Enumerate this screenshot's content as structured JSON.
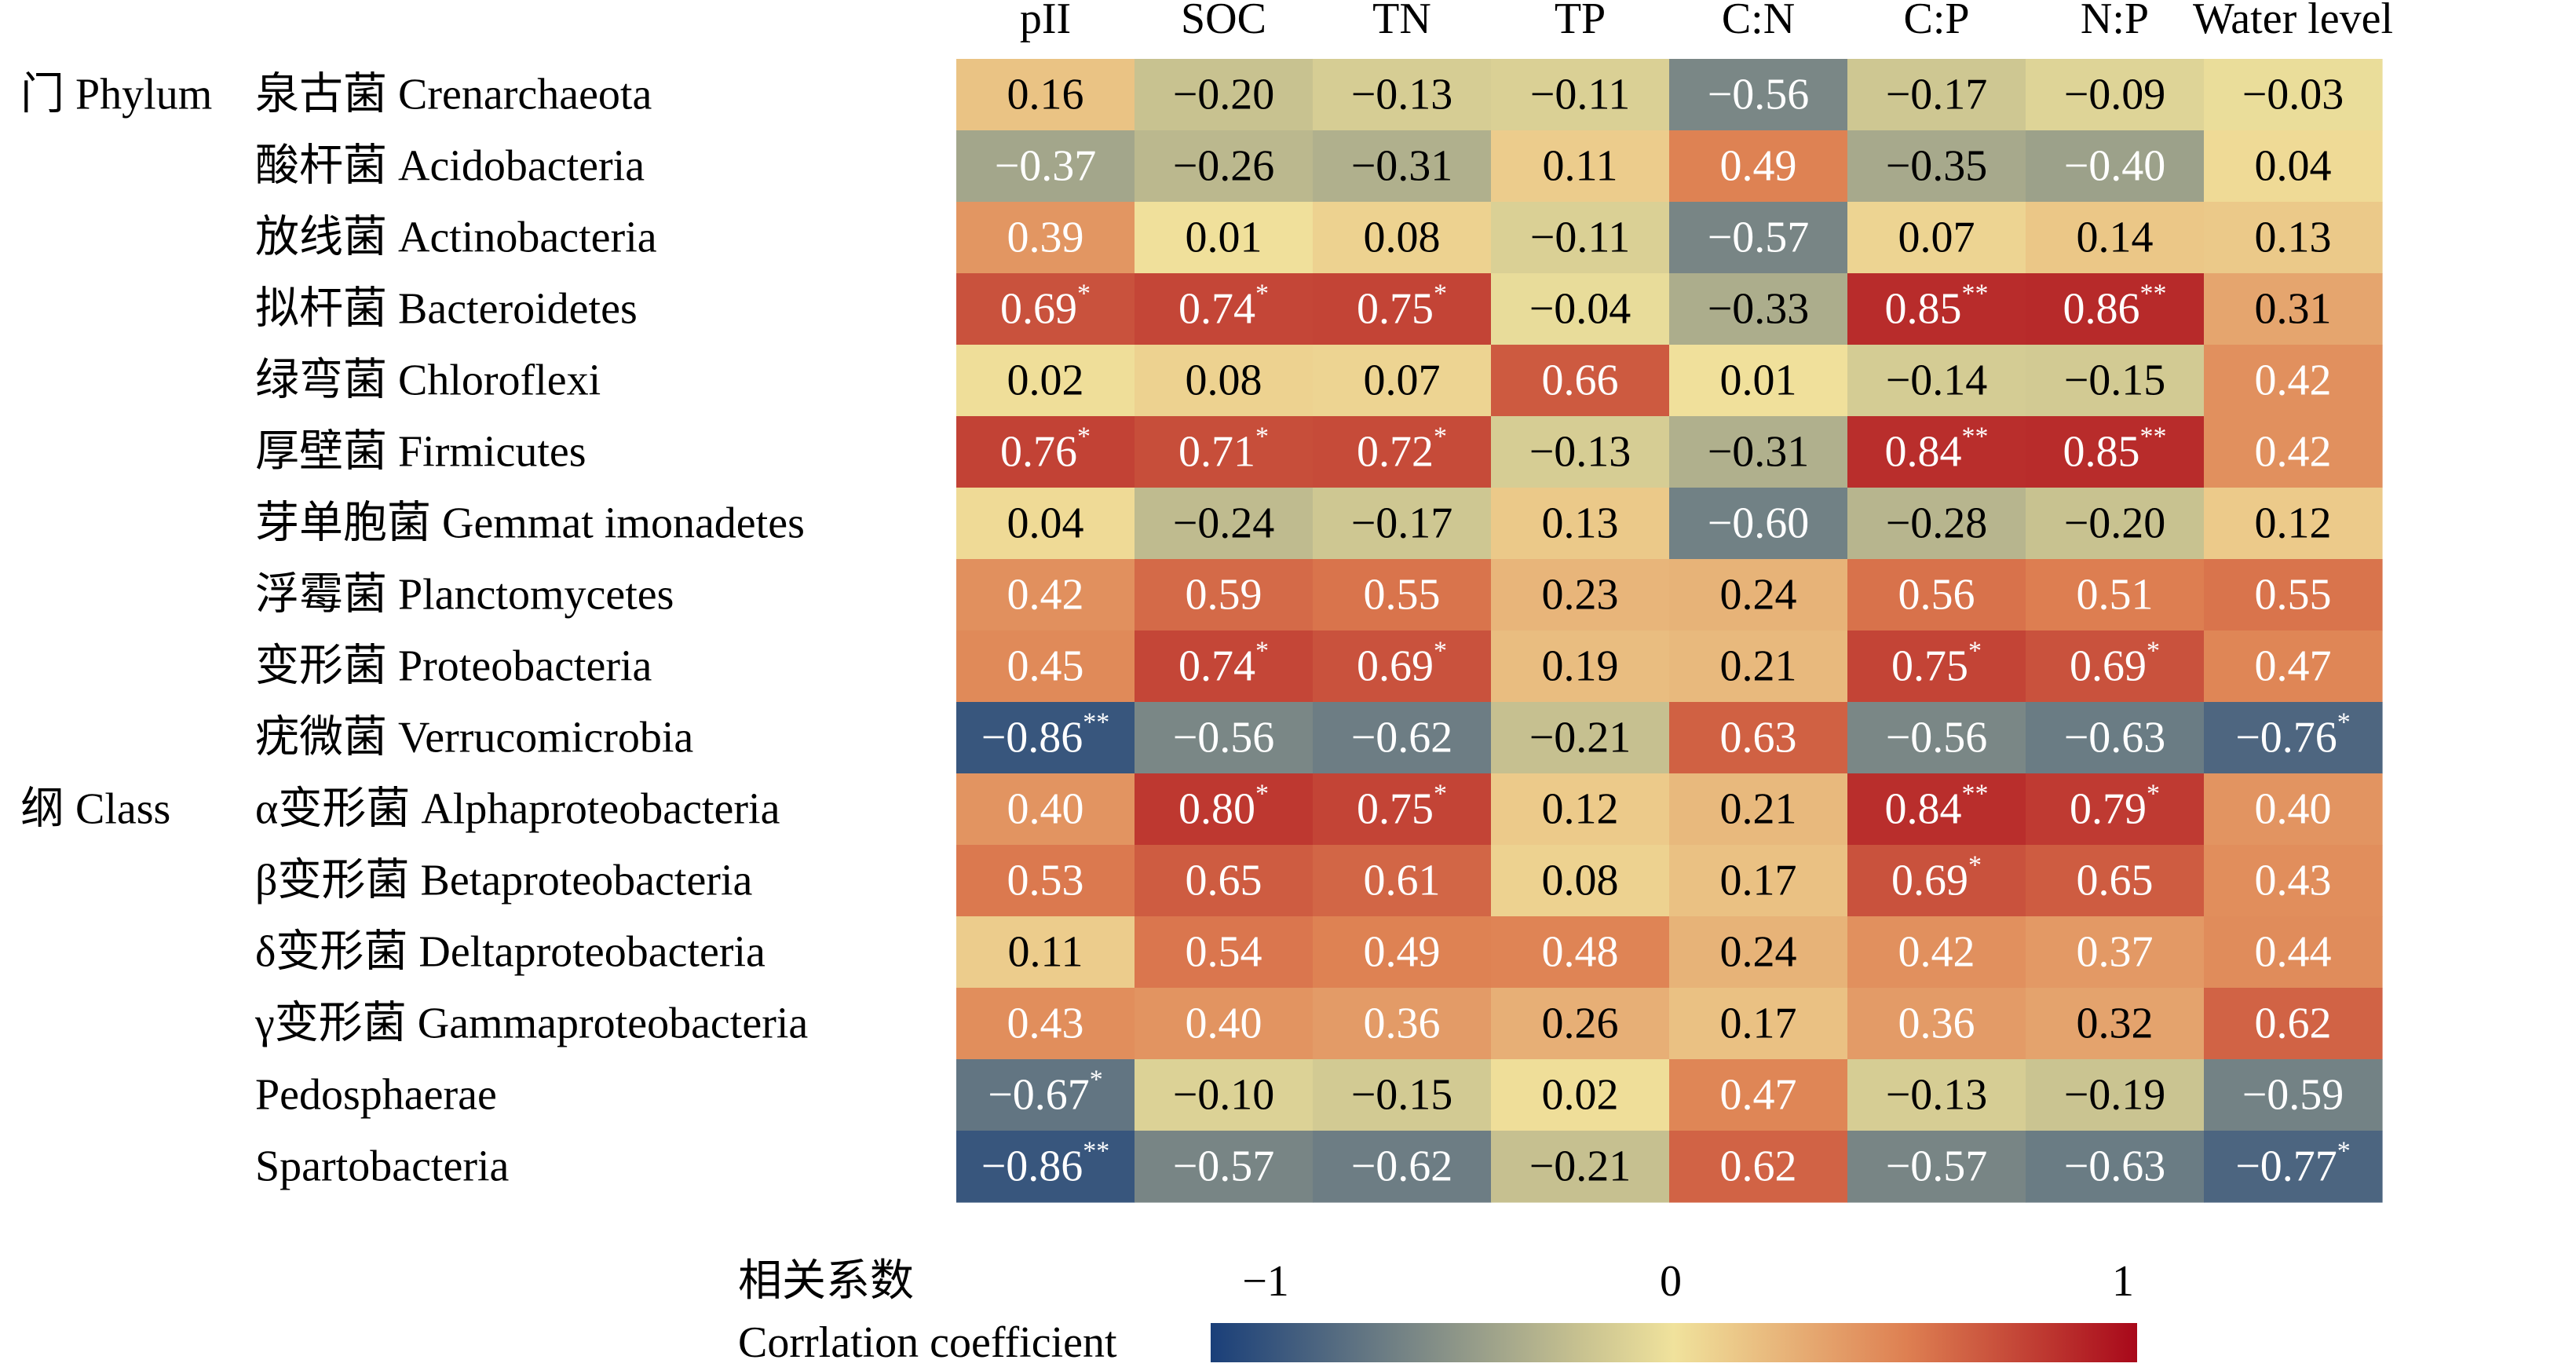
{
  "chart_data": {
    "type": "heatmap",
    "columns": [
      "pII",
      "SOC",
      "TN",
      "TP",
      "C:N",
      "C:P",
      "N:P",
      "Water level"
    ],
    "groups": [
      {
        "label": "门 Phylum",
        "rows": [
          0,
          1,
          2,
          3,
          4,
          5,
          6,
          7,
          8,
          9
        ]
      },
      {
        "label": "纲 Class",
        "rows": [
          10,
          11,
          12,
          13,
          14,
          15
        ]
      }
    ],
    "rows": [
      "泉古菌 Crenarchaeota",
      "酸杆菌 Acidobacteria",
      "放线菌 Actinobacteria",
      "拟杆菌 Bacteroidetes",
      "绿弯菌 Chloroflexi",
      "厚壁菌 Firmicutes",
      "芽单胞菌 Gemmat imonadetes",
      "浮霉菌 Planctomycetes",
      "变形菌 Proteobacteria",
      "疣微菌 Verrucomicrobia",
      "α变形菌 Alphaproteobacteria",
      "β变形菌 Betaproteobacteria",
      "δ变形菌 Deltaproteobacteria",
      "γ变形菌 Gammaproteobacteria",
      "Pedosphaerae",
      "Spartobacteria"
    ],
    "values": [
      [
        0.16,
        -0.2,
        -0.13,
        -0.11,
        -0.56,
        -0.17,
        -0.09,
        -0.03
      ],
      [
        -0.37,
        -0.26,
        -0.31,
        0.11,
        0.49,
        -0.35,
        -0.4,
        0.04
      ],
      [
        0.39,
        0.01,
        0.08,
        -0.11,
        -0.57,
        0.07,
        0.14,
        0.13
      ],
      [
        0.69,
        0.74,
        0.75,
        -0.04,
        -0.33,
        0.85,
        0.86,
        0.31
      ],
      [
        0.02,
        0.08,
        0.07,
        0.66,
        0.01,
        -0.14,
        -0.15,
        0.42
      ],
      [
        0.76,
        0.71,
        0.72,
        -0.13,
        -0.31,
        0.84,
        0.85,
        0.42
      ],
      [
        0.04,
        -0.24,
        -0.17,
        0.13,
        -0.6,
        -0.28,
        -0.2,
        0.12
      ],
      [
        0.42,
        0.59,
        0.55,
        0.23,
        0.24,
        0.56,
        0.51,
        0.55
      ],
      [
        0.45,
        0.74,
        0.69,
        0.19,
        0.21,
        0.75,
        0.69,
        0.47
      ],
      [
        -0.86,
        -0.56,
        -0.62,
        -0.21,
        0.63,
        -0.56,
        -0.63,
        -0.76
      ],
      [
        0.4,
        0.8,
        0.75,
        0.12,
        0.21,
        0.84,
        0.79,
        0.4
      ],
      [
        0.53,
        0.65,
        0.61,
        0.08,
        0.17,
        0.69,
        0.65,
        0.43
      ],
      [
        0.11,
        0.54,
        0.49,
        0.48,
        0.24,
        0.42,
        0.37,
        0.44
      ],
      [
        0.43,
        0.4,
        0.36,
        0.26,
        0.17,
        0.36,
        0.32,
        0.62
      ],
      [
        -0.67,
        -0.1,
        -0.15,
        0.02,
        0.47,
        -0.13,
        -0.19,
        -0.59
      ],
      [
        -0.86,
        -0.57,
        -0.62,
        -0.21,
        0.62,
        -0.57,
        -0.63,
        -0.77
      ]
    ],
    "significance": [
      [
        "",
        "",
        "",
        "",
        "",
        "",
        "",
        ""
      ],
      [
        "",
        "",
        "",
        "",
        "",
        "",
        "",
        ""
      ],
      [
        "",
        "",
        "",
        "",
        "",
        "",
        "",
        ""
      ],
      [
        "*",
        "*",
        "*",
        "",
        "",
        "**",
        "**",
        ""
      ],
      [
        "",
        "",
        "",
        "",
        "",
        "",
        "",
        ""
      ],
      [
        "*",
        "*",
        "*",
        "",
        "",
        "**",
        "**",
        ""
      ],
      [
        "",
        "",
        "",
        "",
        "",
        "",
        "",
        ""
      ],
      [
        "",
        "",
        "",
        "",
        "",
        "",
        "",
        ""
      ],
      [
        "",
        "*",
        "*",
        "",
        "",
        "*",
        "*",
        ""
      ],
      [
        "**",
        "",
        "",
        "",
        "",
        "",
        "",
        "*"
      ],
      [
        "",
        "*",
        "*",
        "",
        "",
        "**",
        "*",
        ""
      ],
      [
        "",
        "",
        "",
        "",
        "",
        "*",
        "",
        ""
      ],
      [
        "",
        "",
        "",
        "",
        "",
        "",
        "",
        ""
      ],
      [
        "",
        "",
        "",
        "",
        "",
        "",
        "",
        ""
      ],
      [
        "*",
        "",
        "",
        "",
        "",
        "",
        "",
        ""
      ],
      [
        "**",
        "",
        "",
        "",
        "",
        "",
        "",
        "*"
      ]
    ],
    "range": [
      -1,
      1
    ],
    "colorbar": {
      "title_cn": "相关系数",
      "title_en": "Corrlation coefficient",
      "ticks": [
        "−1",
        "0",
        "1"
      ],
      "tick_values": [
        -1,
        0,
        1
      ],
      "colors": [
        "#1a3f79",
        "#c8c290",
        "#f0e29c",
        "#de8052",
        "#a8081a"
      ]
    }
  }
}
